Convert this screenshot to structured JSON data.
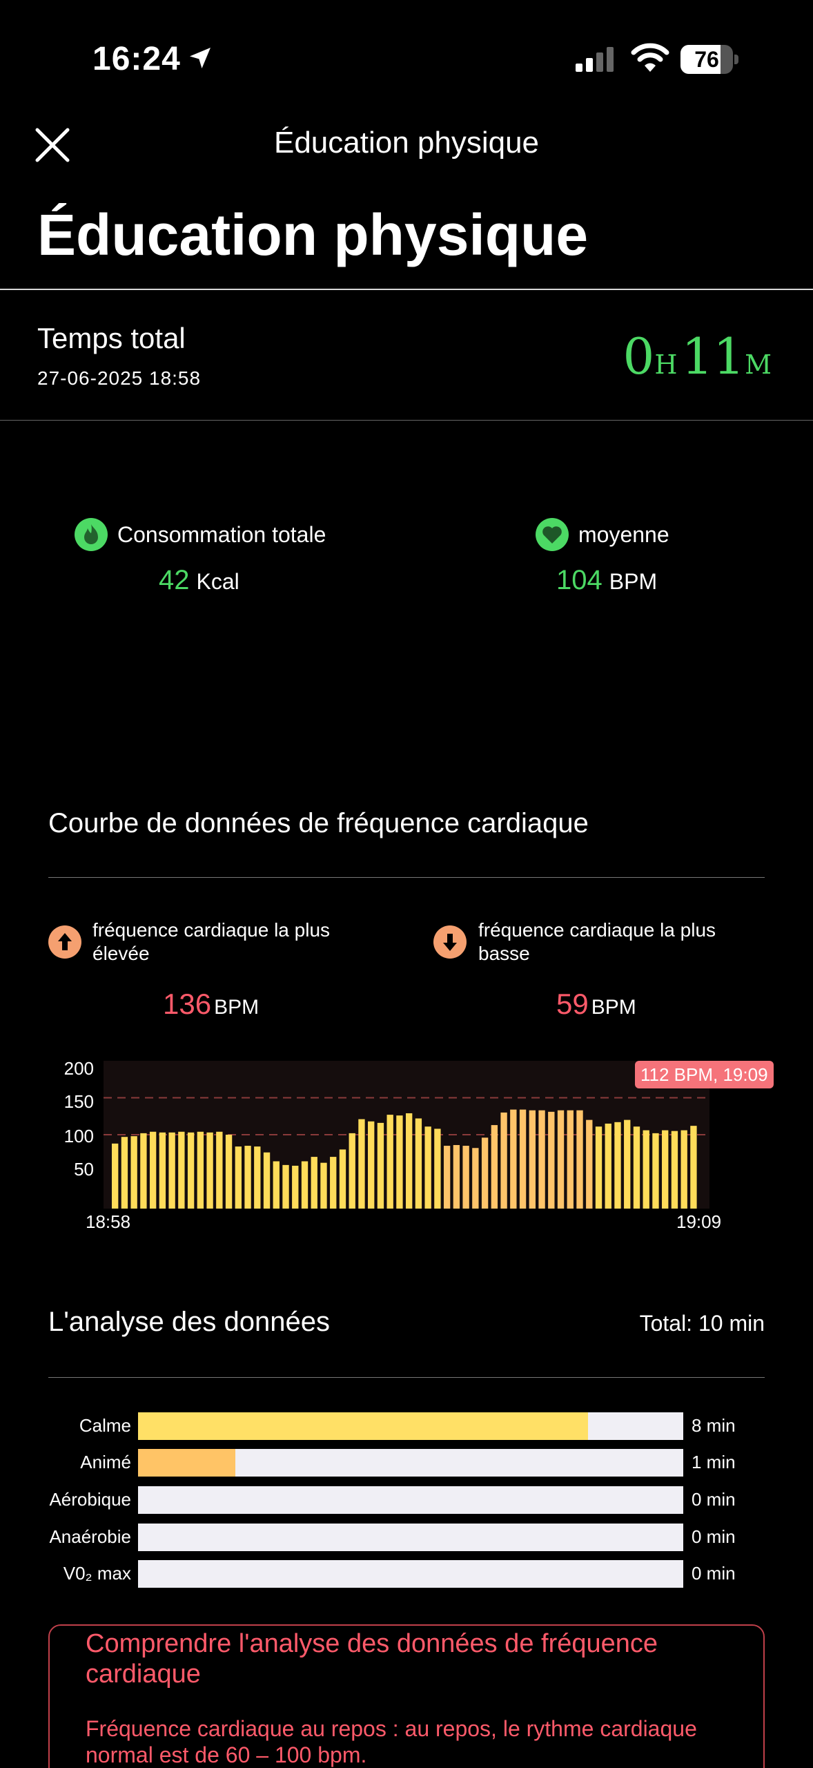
{
  "status": {
    "time": "16:24",
    "battery": "76",
    "battery_level": 0.76
  },
  "nav": {
    "title": "Éducation physique"
  },
  "header": {
    "title": "Éducation physique"
  },
  "total_time": {
    "label": "Temps total",
    "date": "27-06-2025 18:58",
    "hours": "0",
    "hours_unit": "H",
    "minutes": "11",
    "minutes_unit": "M"
  },
  "summary": {
    "calories": {
      "label": "Consommation totale",
      "value": "42",
      "unit": "Kcal",
      "icon": "flame-icon"
    },
    "heart": {
      "label": "moyenne",
      "value": "104",
      "unit": "BPM",
      "icon": "heart-icon"
    }
  },
  "hr_section": {
    "title": "Courbe de données de fréquence cardiaque",
    "max": {
      "label": "fréquence cardiaque la plus élevée",
      "value": "136",
      "unit": "BPM",
      "icon": "arrow-up-icon"
    },
    "min": {
      "label": "fréquence cardiaque la plus basse",
      "value": "59",
      "unit": "BPM",
      "icon": "arrow-down-icon"
    }
  },
  "chart_data": {
    "type": "bar",
    "ylim": [
      0,
      200
    ],
    "yticks": [
      "200",
      "150",
      "100",
      "50"
    ],
    "x_start": "18:58",
    "x_end": "19:09",
    "tooltip": "112 BPM, 19:09",
    "reference_lines": [
      150,
      100
    ],
    "values": [
      88,
      97,
      98,
      102,
      104,
      103,
      103,
      104,
      103,
      104,
      103,
      104,
      100,
      84,
      85,
      84,
      76,
      64,
      59,
      58,
      64,
      70,
      62,
      70,
      80,
      102,
      121,
      118,
      116,
      127,
      126,
      129,
      122,
      111,
      108,
      85,
      86,
      85,
      82,
      96,
      113,
      130,
      134,
      134,
      133,
      133,
      131,
      133,
      133,
      133,
      120,
      111,
      115,
      117,
      120,
      111,
      106,
      102,
      106,
      105,
      106,
      112
    ],
    "highlight_range": [
      35,
      50
    ],
    "colors": {
      "normal": "#ffdc5a",
      "highlight": "#ffc46a",
      "grid": "#8a3a3a"
    }
  },
  "analysis": {
    "title": "L'analyse des données",
    "total": "Total: 10 min",
    "zones": [
      {
        "label": "Calme",
        "value": "8 min",
        "fraction": 0.825,
        "color": "#ffe066"
      },
      {
        "label": "Animé",
        "value": "1 min",
        "fraction": 0.178,
        "color": "#ffc466"
      },
      {
        "label": "Aérobique",
        "value": "0 min",
        "fraction": 0,
        "color": "#ffb060"
      },
      {
        "label": "Anaérobie",
        "value": "0 min",
        "fraction": 0,
        "color": "#ff8a50"
      },
      {
        "label": "V0₂ max",
        "value": "0 min",
        "fraction": 0,
        "color": "#ff5a5a"
      }
    ]
  },
  "info": {
    "title": "Comprendre l'analyse des données de fréquence cardiaque",
    "text": "Fréquence cardiaque au repos : au repos, le rythme cardiaque normal est de 60 – 100 bpm."
  }
}
